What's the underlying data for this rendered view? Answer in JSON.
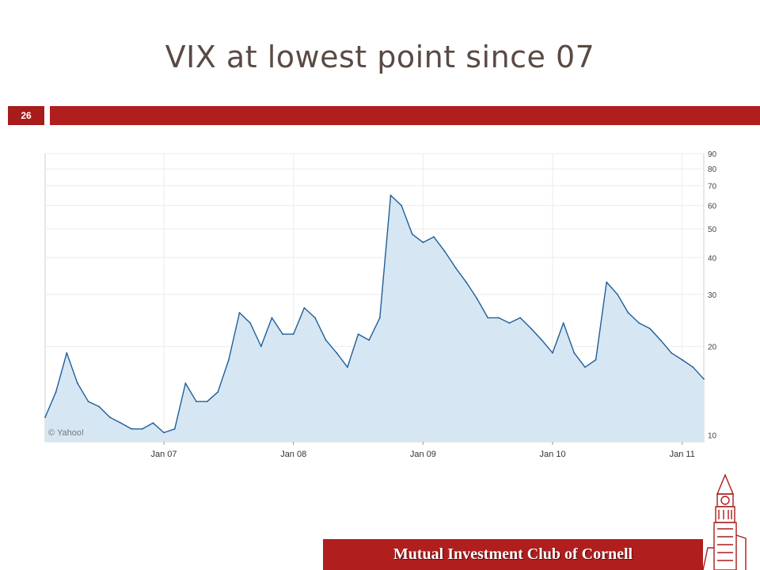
{
  "slide": {
    "title": "VIX at lowest point since 07",
    "page_number": "26",
    "footer": "Mutual Investment Club of Cornell"
  },
  "colors": {
    "accent": "#b01e1e",
    "line": "#1f5f99",
    "fill": "#d6e6f3"
  },
  "chart_data": {
    "type": "area",
    "yscale": "log",
    "ylim": [
      9.5,
      90
    ],
    "yticks": [
      10,
      20,
      30,
      40,
      50,
      60,
      70,
      80,
      90
    ],
    "xlim": [
      "2006-02",
      "2011-03"
    ],
    "xticks": [
      "Jan 07",
      "Jan 08",
      "Jan 09",
      "Jan 10",
      "Jan 11"
    ],
    "xtick_dates": [
      "2007-01",
      "2008-01",
      "2009-01",
      "2010-01",
      "2011-01"
    ],
    "watermark": "© Yahoo!",
    "x": [
      "2006-02",
      "2006-03",
      "2006-04",
      "2006-05",
      "2006-06",
      "2006-07",
      "2006-08",
      "2006-09",
      "2006-10",
      "2006-11",
      "2006-12",
      "2007-01",
      "2007-02",
      "2007-03",
      "2007-04",
      "2007-05",
      "2007-06",
      "2007-07",
      "2007-08",
      "2007-09",
      "2007-10",
      "2007-11",
      "2007-12",
      "2008-01",
      "2008-02",
      "2008-03",
      "2008-04",
      "2008-05",
      "2008-06",
      "2008-07",
      "2008-08",
      "2008-09",
      "2008-10",
      "2008-11",
      "2008-12",
      "2009-01",
      "2009-02",
      "2009-03",
      "2009-04",
      "2009-05",
      "2009-06",
      "2009-07",
      "2009-08",
      "2009-09",
      "2009-10",
      "2009-11",
      "2009-12",
      "2010-01",
      "2010-02",
      "2010-03",
      "2010-04",
      "2010-05",
      "2010-06",
      "2010-07",
      "2010-08",
      "2010-09",
      "2010-10",
      "2010-11",
      "2010-12",
      "2011-01",
      "2011-02",
      "2011-03"
    ],
    "values": [
      11.5,
      14,
      19,
      15,
      13,
      12.5,
      11.5,
      11,
      10.5,
      10.5,
      11,
      10.2,
      10.5,
      15,
      13,
      13,
      14,
      18,
      26,
      24,
      20,
      25,
      22,
      22,
      27,
      25,
      21,
      19,
      17,
      22,
      21,
      25,
      65,
      60,
      48,
      45,
      47,
      42,
      37,
      33,
      29,
      25,
      25,
      24,
      25,
      23,
      21,
      19,
      24,
      19,
      17,
      18,
      33,
      30,
      26,
      24,
      23,
      21,
      19,
      18,
      17,
      15.5
    ]
  }
}
